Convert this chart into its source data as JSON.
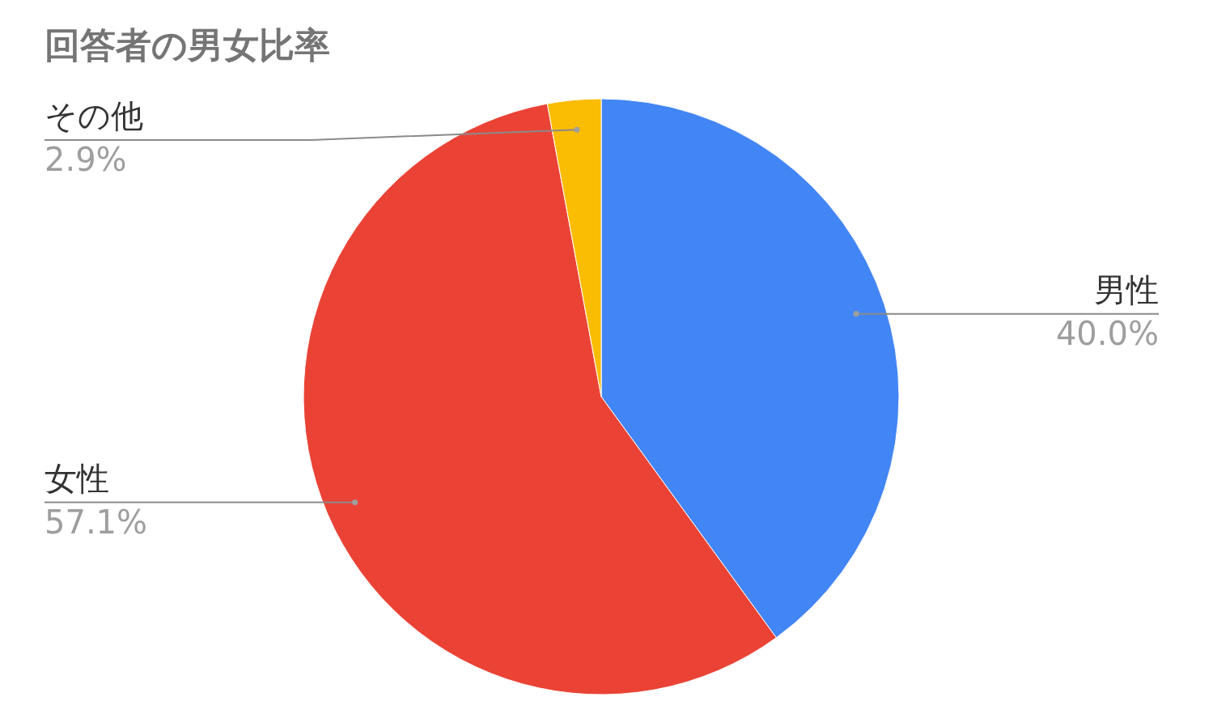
{
  "chart_data": {
    "type": "pie",
    "title": "回答者の男女比率",
    "categories": [
      "男性",
      "女性",
      "その他"
    ],
    "values": [
      40.0,
      57.1,
      2.9
    ],
    "colors": [
      "#4285f4",
      "#ea4335",
      "#fbbc04"
    ],
    "value_labels": [
      "40.0%",
      "57.1%",
      "2.9%"
    ]
  }
}
